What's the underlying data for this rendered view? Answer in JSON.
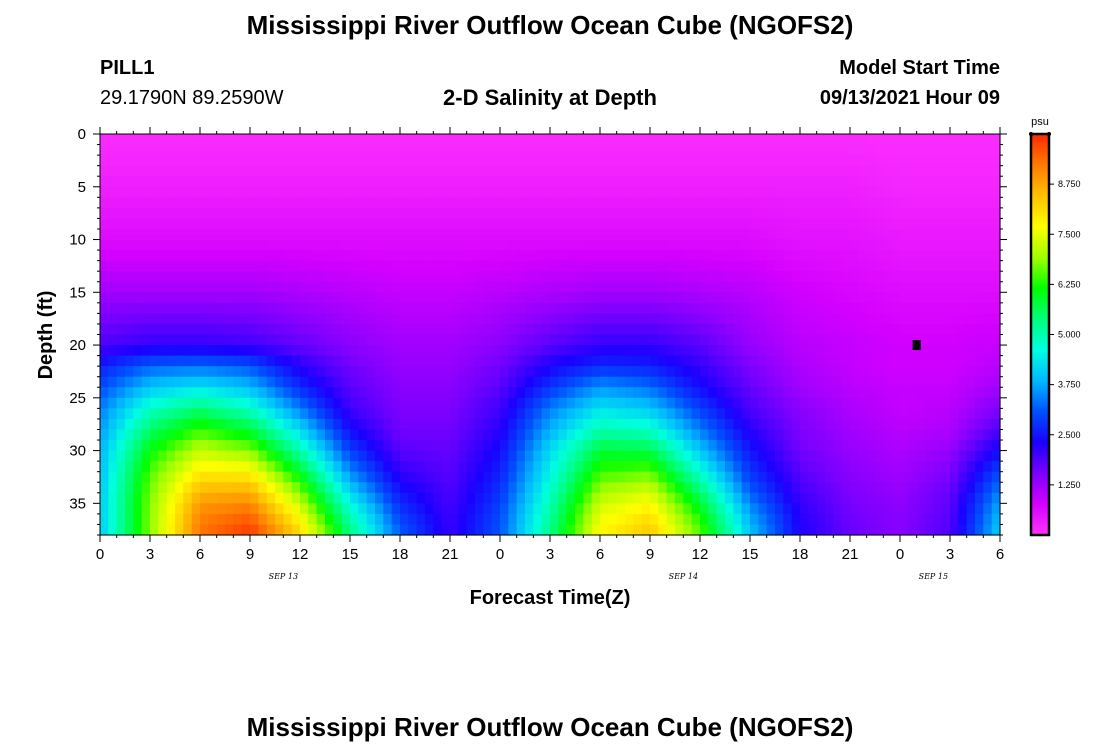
{
  "header": {
    "title": "Mississippi River Outflow Ocean Cube (NGOFS2)",
    "station_id": "PILL1",
    "station_coords": "29.1790N  89.2590W",
    "plot_title": "2-D Salinity at Depth",
    "model_start_label": "Model Start Time",
    "model_start_value": "09/13/2021 Hour 09"
  },
  "footer": {
    "title": "Mississippi River Outflow Ocean Cube (NGOFS2)"
  },
  "chart_data": {
    "type": "heatmap",
    "title": "2-D Salinity at Depth",
    "xlabel": "Forecast Time(Z)",
    "ylabel": "Depth (ft)",
    "xlim": [
      0,
      54
    ],
    "ylim": [
      38,
      0
    ],
    "x_tick_labels": [
      "0",
      "3",
      "6",
      "9",
      "12",
      "15",
      "18",
      "21",
      "0",
      "3",
      "6",
      "9",
      "12",
      "15",
      "18",
      "21",
      "0",
      "3",
      "6"
    ],
    "y_tick_labels": [
      "0",
      "5",
      "10",
      "15",
      "20",
      "25",
      "30",
      "35"
    ],
    "y_ticks": [
      0,
      5,
      10,
      15,
      20,
      25,
      30,
      35
    ],
    "date_labels": [
      {
        "hour": 11,
        "text": "SEP 13"
      },
      {
        "hour": 35,
        "text": "SEP 14"
      },
      {
        "hour": 50,
        "text": "SEP 15"
      }
    ],
    "colorbar": {
      "unit": "psu",
      "min": 0,
      "max": 10,
      "tick_values": [
        1.25,
        2.5,
        3.75,
        5.0,
        6.25,
        7.5,
        8.75
      ],
      "tick_labels": [
        "1.250",
        "2.500",
        "3.750",
        "5.000",
        "6.250",
        "7.500",
        "8.750"
      ],
      "colors": [
        "#ff33ff",
        "#d400ff",
        "#7a00ff",
        "#1a00ff",
        "#0050ff",
        "#00b8ff",
        "#00ffe0",
        "#00ff7a",
        "#00ff00",
        "#a0ff00",
        "#ffff00",
        "#ffc000",
        "#ff7a00",
        "#ff2a00"
      ]
    },
    "marker": {
      "hour": 49,
      "depth": 20
    },
    "salinity_grid": {
      "hours": [
        0,
        3,
        6,
        9,
        12,
        15,
        18,
        21,
        24,
        27,
        30,
        33,
        36,
        39,
        42,
        45,
        48,
        51,
        54
      ],
      "depths": [
        0,
        5,
        10,
        15,
        20,
        22,
        24,
        26,
        28,
        30,
        32,
        34,
        36,
        38
      ],
      "values": [
        [
          0.1,
          0.1,
          0.1,
          0.1,
          0.1,
          0.1,
          0.1,
          0.1,
          0.1,
          0.1,
          0.1,
          0.1,
          0.1,
          0.1,
          0.1,
          0.1,
          0.1,
          0.1,
          0.1
        ],
        [
          0.3,
          0.3,
          0.3,
          0.3,
          0.3,
          0.3,
          0.3,
          0.3,
          0.3,
          0.3,
          0.3,
          0.3,
          0.3,
          0.3,
          0.3,
          0.3,
          0.2,
          0.2,
          0.2
        ],
        [
          0.6,
          0.6,
          0.6,
          0.6,
          0.6,
          0.6,
          0.6,
          0.6,
          0.6,
          0.6,
          0.6,
          0.6,
          0.6,
          0.6,
          0.5,
          0.5,
          0.4,
          0.4,
          0.4
        ],
        [
          1.2,
          1.2,
          1.2,
          1.2,
          1.1,
          1.0,
          0.9,
          0.9,
          1.0,
          1.1,
          1.2,
          1.2,
          1.1,
          1.0,
          0.8,
          0.7,
          0.6,
          0.6,
          0.6
        ],
        [
          1.9,
          2.1,
          2.1,
          2.0,
          1.7,
          1.4,
          1.2,
          1.2,
          1.4,
          1.8,
          2.1,
          2.1,
          1.8,
          1.3,
          1.0,
          0.9,
          0.8,
          0.8,
          0.9
        ],
        [
          2.6,
          3.2,
          3.3,
          3.1,
          2.2,
          1.6,
          1.3,
          1.3,
          1.6,
          2.3,
          2.7,
          2.6,
          2.1,
          1.5,
          1.1,
          0.9,
          0.8,
          0.8,
          1.0
        ],
        [
          3.0,
          4.0,
          4.3,
          3.9,
          2.7,
          1.8,
          1.4,
          1.4,
          1.8,
          2.8,
          3.6,
          3.3,
          2.4,
          1.7,
          1.2,
          1.0,
          0.9,
          0.9,
          1.2
        ],
        [
          3.4,
          4.8,
          5.4,
          4.8,
          3.4,
          2.0,
          1.5,
          1.5,
          2.0,
          3.4,
          4.3,
          4.0,
          2.9,
          1.9,
          1.4,
          1.1,
          0.9,
          1.0,
          1.5
        ],
        [
          3.6,
          5.5,
          6.4,
          5.8,
          4.2,
          2.4,
          1.6,
          1.6,
          2.2,
          3.8,
          5.0,
          4.8,
          3.4,
          2.2,
          1.5,
          1.2,
          1.0,
          1.1,
          1.9
        ],
        [
          3.8,
          6.1,
          7.2,
          6.8,
          5.0,
          2.9,
          1.8,
          1.7,
          2.4,
          4.2,
          5.8,
          5.7,
          4.0,
          2.5,
          1.6,
          1.3,
          1.1,
          1.3,
          2.4
        ],
        [
          3.9,
          6.5,
          7.9,
          7.8,
          5.9,
          3.5,
          2.1,
          1.8,
          2.6,
          4.5,
          6.4,
          6.6,
          4.7,
          2.8,
          1.8,
          1.4,
          1.2,
          1.5,
          3.0
        ],
        [
          4.0,
          6.7,
          8.6,
          8.7,
          6.8,
          4.2,
          2.5,
          1.9,
          2.8,
          4.8,
          7.0,
          7.4,
          5.5,
          3.2,
          2.0,
          1.5,
          1.3,
          1.7,
          3.5
        ],
        [
          4.0,
          6.8,
          9.1,
          9.4,
          7.6,
          4.9,
          2.9,
          2.0,
          3.0,
          5.1,
          7.5,
          8.0,
          6.2,
          3.7,
          2.2,
          1.6,
          1.4,
          1.8,
          3.9
        ],
        [
          4.0,
          6.8,
          9.3,
          9.9,
          8.2,
          5.4,
          3.2,
          2.1,
          3.1,
          5.3,
          7.8,
          8.4,
          6.6,
          4.0,
          2.3,
          1.7,
          1.4,
          1.9,
          4.1
        ]
      ]
    }
  }
}
